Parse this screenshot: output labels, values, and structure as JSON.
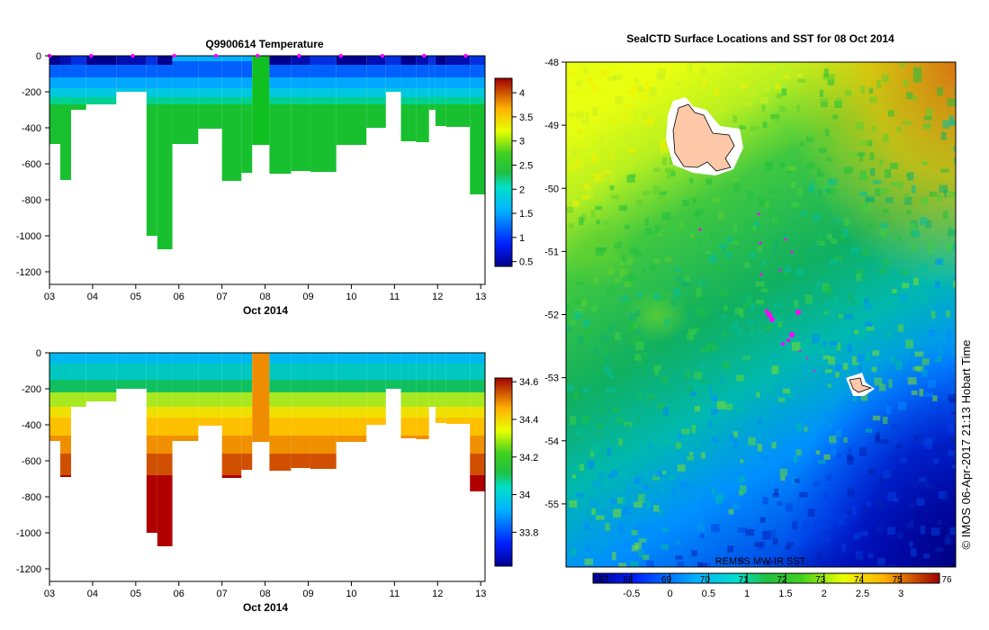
{
  "chart_data": [
    {
      "id": "temperature-profile",
      "type": "heatmap",
      "title": "Q9900614  Temperature",
      "xlabel": "Oct 2014",
      "x_ticks": [
        "03",
        "04",
        "05",
        "06",
        "07",
        "08",
        "09",
        "10",
        "11",
        "12",
        "13"
      ],
      "y_ticks": [
        "0",
        "-200",
        "-400",
        "-600",
        "-800",
        "-1000",
        "-1200"
      ],
      "xlim": [
        3,
        13.1
      ],
      "ylim": [
        -1270,
        0
      ],
      "colorbar_range": [
        0.4,
        4.3
      ],
      "colorbar_ticks": [
        "0.5",
        "1",
        "1.5",
        "2",
        "2.5",
        "3",
        "3.5",
        "4"
      ],
      "profile_surface_markers_color": "#ff00ff",
      "profiles": [
        {
          "x0": 3.0,
          "x1": 3.25,
          "depth": -490
        },
        {
          "x0": 3.25,
          "x1": 3.5,
          "depth": -690
        },
        {
          "x0": 3.5,
          "x1": 3.85,
          "depth": -300
        },
        {
          "x0": 3.85,
          "x1": 4.55,
          "depth": -270
        },
        {
          "x0": 4.55,
          "x1": 5.25,
          "depth": -200
        },
        {
          "x0": 5.25,
          "x1": 5.5,
          "depth": -1000
        },
        {
          "x0": 5.5,
          "x1": 5.85,
          "depth": -1075
        },
        {
          "x0": 5.85,
          "x1": 6.45,
          "depth": -490
        },
        {
          "x0": 6.45,
          "x1": 7.0,
          "depth": -405
        },
        {
          "x0": 7.0,
          "x1": 7.45,
          "depth": -695
        },
        {
          "x0": 7.45,
          "x1": 7.7,
          "depth": -650
        },
        {
          "x0": 7.7,
          "x1": 8.1,
          "depth": -495
        },
        {
          "x0": 8.1,
          "x1": 8.6,
          "depth": -655
        },
        {
          "x0": 8.6,
          "x1": 9.05,
          "depth": -640
        },
        {
          "x0": 9.05,
          "x1": 9.65,
          "depth": -645
        },
        {
          "x0": 9.65,
          "x1": 10.35,
          "depth": -495
        },
        {
          "x0": 10.35,
          "x1": 10.8,
          "depth": -400
        },
        {
          "x0": 10.8,
          "x1": 11.15,
          "depth": -200
        },
        {
          "x0": 11.15,
          "x1": 11.5,
          "depth": -475
        },
        {
          "x0": 11.5,
          "x1": 11.8,
          "depth": -480
        },
        {
          "x0": 11.8,
          "x1": 11.95,
          "depth": -300
        },
        {
          "x0": 11.95,
          "x1": 12.2,
          "depth": -390
        },
        {
          "x0": 12.2,
          "x1": 12.75,
          "depth": -395
        },
        {
          "x0": 12.75,
          "x1": 13.1,
          "depth": -770
        }
      ]
    },
    {
      "id": "salinity-profile",
      "type": "heatmap",
      "title": "",
      "xlabel": "Oct 2014",
      "x_ticks": [
        "03",
        "04",
        "05",
        "06",
        "07",
        "08",
        "09",
        "10",
        "11",
        "12",
        "13"
      ],
      "y_ticks": [
        "0",
        "-200",
        "-400",
        "-600",
        "-800",
        "-1000",
        "-1200"
      ],
      "xlim": [
        3,
        13.1
      ],
      "ylim": [
        -1270,
        0
      ],
      "colorbar_range": [
        33.62,
        34.62
      ],
      "colorbar_ticks": [
        "33.8",
        "34",
        "34.2",
        "34.4",
        "34.6"
      ]
    },
    {
      "id": "sst-map",
      "type": "heatmap",
      "title": "SealCTD Surface Locations and SST for 08 Oct 2014",
      "y_ticks": [
        "-48",
        "-49",
        "-50",
        "-51",
        "-52",
        "-53",
        "-54",
        "-55"
      ],
      "ylim": [
        -56,
        -48
      ],
      "source_label": "REMSS MW-IR SST",
      "colorbar_top_ticks": [
        "67",
        "68",
        "69",
        "70",
        "71",
        "72",
        "73",
        "74",
        "75",
        "76"
      ],
      "colorbar_bottom_ticks": [
        "-0.5",
        "0",
        "0.5",
        "1",
        "1.5",
        "2",
        "2.5",
        "3"
      ],
      "colorbar_range_c": [
        -1,
        3.5
      ],
      "islands": [
        {
          "name": "island-north",
          "lon": 0.27,
          "lat": -49.4
        },
        {
          "name": "island-south",
          "lon": 0.79,
          "lat": -53.05
        }
      ],
      "seal_positions_color": "#ff00ff",
      "copyright": "© IMOS 06-Apr-2017 21:13 Hobart Time"
    }
  ]
}
